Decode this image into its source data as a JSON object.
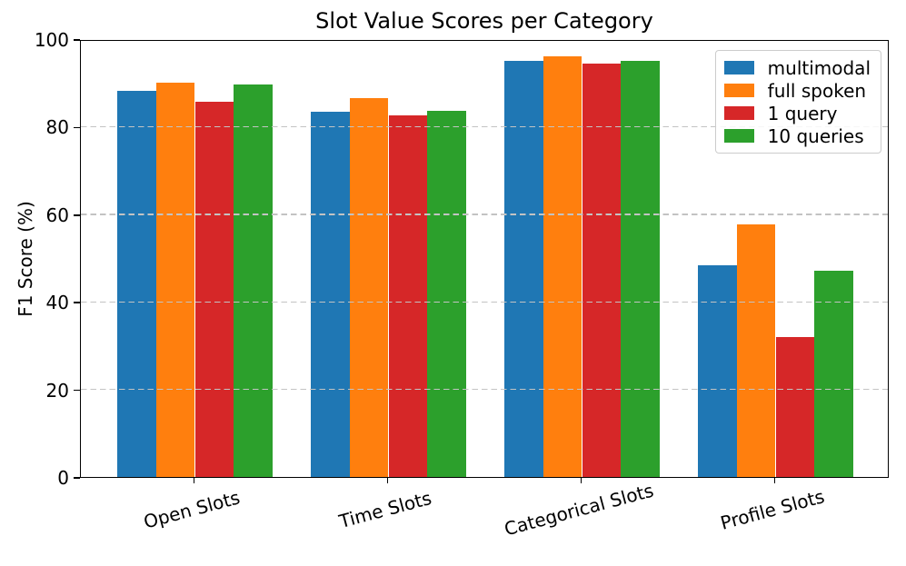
{
  "chart_data": {
    "type": "bar",
    "title": "Slot Value Scores per Category",
    "xlabel": "",
    "ylabel": "F1 Score (%)",
    "ylim": [
      0,
      100
    ],
    "yticks": [
      0,
      20,
      40,
      60,
      80,
      100
    ],
    "grid": "horizontal dashed gridlines at 20/40/60/80 drawn over bars",
    "legend_position": "upper right",
    "categories": [
      "Open Slots",
      "Time Slots",
      "Categorical Slots",
      "Profile Slots"
    ],
    "series": [
      {
        "name": "multimodal",
        "color": "#1f77b4",
        "values": [
          88.1,
          83.4,
          95.0,
          48.4
        ]
      },
      {
        "name": "full spoken",
        "color": "#ff7f0e",
        "values": [
          90.1,
          86.6,
          96.0,
          57.7
        ]
      },
      {
        "name": "1 query",
        "color": "#d62728",
        "values": [
          85.6,
          82.6,
          94.4,
          32.0
        ]
      },
      {
        "name": "10 queries",
        "color": "#2ca02c",
        "values": [
          89.7,
          83.7,
          95.1,
          47.2
        ]
      }
    ]
  }
}
